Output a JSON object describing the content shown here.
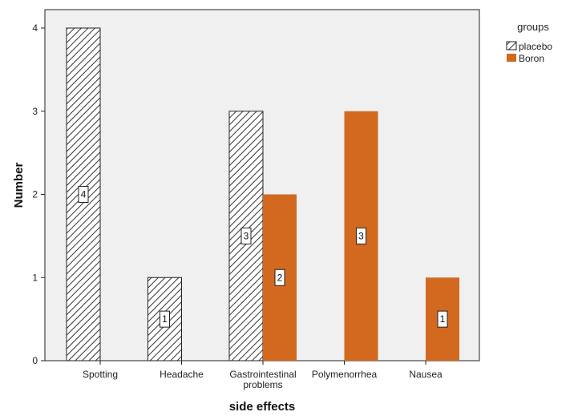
{
  "chart_data": {
    "type": "bar",
    "xlabel": "side effects",
    "ylabel": "Number",
    "ylim": [
      0,
      4
    ],
    "yticks": [
      0,
      1,
      2,
      3,
      4
    ],
    "grid": false,
    "legend_title": "groups",
    "legend_position": "top-right",
    "categories": [
      [
        "Spotting"
      ],
      [
        "Headache"
      ],
      [
        "Gastrointestinal",
        "problems"
      ],
      [
        "Polymenorrhea"
      ],
      [
        "Nausea"
      ]
    ],
    "series": [
      {
        "name": "placebo",
        "values": [
          4,
          1,
          3,
          0,
          0
        ],
        "pattern": "hatched",
        "color": "#ffffff"
      },
      {
        "name": "Boron",
        "values": [
          0,
          0,
          2,
          3,
          1
        ],
        "pattern": "solid",
        "color": "#d2691e"
      }
    ]
  },
  "colors": {
    "plot_background": "#f0f0f0",
    "hatch": "#333333",
    "boron": "#d2691e"
  }
}
